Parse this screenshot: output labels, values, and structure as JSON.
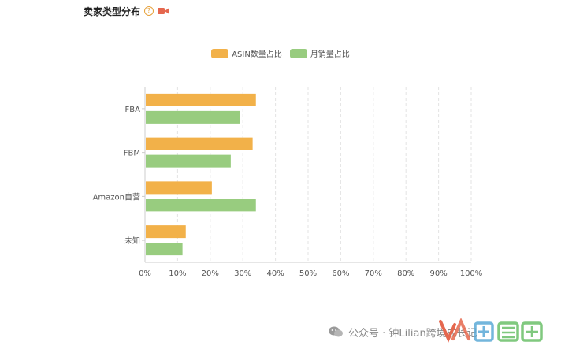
{
  "header": {
    "title": "卖家类型分布",
    "help_icon": "?",
    "video_icon": "video-camera-icon"
  },
  "colors": {
    "asin": "#f2b149",
    "sales": "#98cc7f",
    "grid": "#e3e3e3",
    "axis": "#cccccc",
    "icon_red": "#e5674e"
  },
  "chart_data": {
    "type": "bar",
    "orientation": "horizontal",
    "title": "卖家类型分布",
    "categories": [
      "FBA",
      "FBM",
      "Amazon自营",
      "未知"
    ],
    "series": [
      {
        "name": "ASIN数量占比",
        "values": [
          34,
          33,
          20.5,
          12.5
        ]
      },
      {
        "name": "月销量占比",
        "values": [
          29,
          26.3,
          34,
          11.5
        ]
      }
    ],
    "xlim": [
      0,
      100
    ],
    "x_ticks": [
      "0%",
      "10%",
      "20%",
      "30%",
      "40%",
      "50%",
      "60%",
      "70%",
      "80%",
      "90%",
      "100%"
    ],
    "grid": true,
    "legend": "top-center"
  },
  "watermark": {
    "text": "公众号 · 钟Lilian跨境成长记",
    "icon": "wechat-icon",
    "logo": "brand-logo"
  }
}
